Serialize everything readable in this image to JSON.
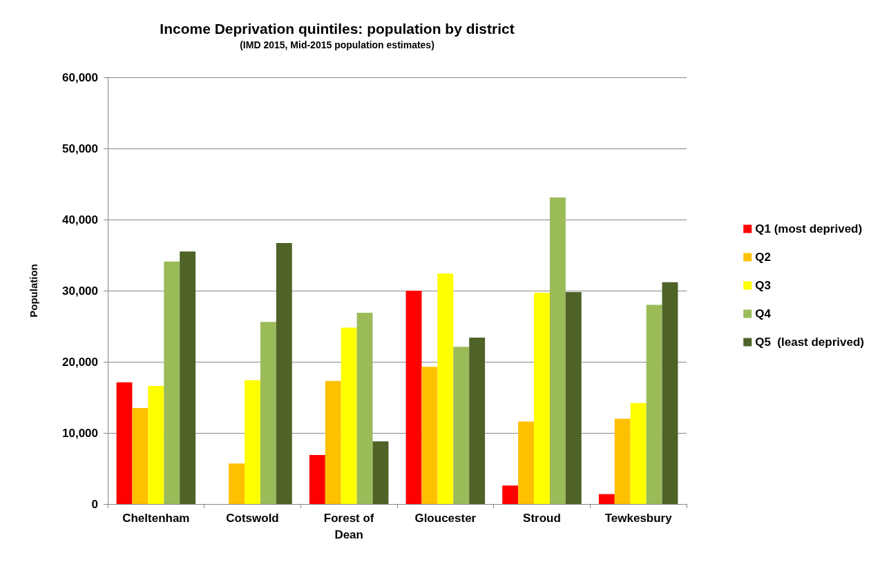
{
  "chart_data": {
    "type": "bar",
    "title": "Income Deprivation quintiles: population by district",
    "subtitle": "(IMD 2015, Mid-2015 population estimates)",
    "ylabel": "Population",
    "categories": [
      "Cheltenham",
      "Cotswold",
      "Forest of\nDean",
      "Gloucester",
      "Stroud",
      "Tewkesbury"
    ],
    "series": [
      {
        "name": "Q1 (most deprived)",
        "color": "#ff0000",
        "values": [
          17100,
          0,
          6900,
          30000,
          2600,
          1400
        ]
      },
      {
        "name": "Q2",
        "color": "#ffc000",
        "values": [
          13500,
          5700,
          17300,
          19300,
          11600,
          12000
        ]
      },
      {
        "name": "Q3",
        "color": "#ffff00",
        "values": [
          16600,
          17400,
          24800,
          32400,
          29700,
          14200
        ]
      },
      {
        "name": "Q4",
        "color": "#9bbb59",
        "values": [
          34100,
          25600,
          26900,
          22100,
          43100,
          28000
        ]
      },
      {
        "name": "Q5  (least deprived)",
        "color": "#4f6228",
        "values": [
          35500,
          36700,
          8800,
          23400,
          29800,
          31200
        ]
      }
    ],
    "ylim": [
      0,
      60000
    ],
    "yticks": [
      0,
      {
        "value": 10000,
        "label": "10,000"
      },
      {
        "value": 20000,
        "label": "20,000"
      },
      {
        "value": 30000,
        "label": "30,000"
      },
      {
        "value": 40000,
        "label": "40,000"
      },
      {
        "value": 50000,
        "label": "50,000"
      },
      {
        "value": 60000,
        "label": "60,000"
      }
    ],
    "grid": "y",
    "legend": "right"
  }
}
